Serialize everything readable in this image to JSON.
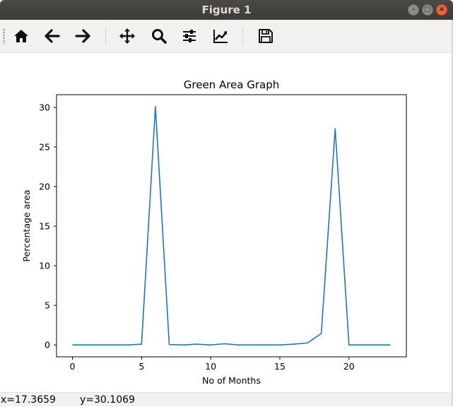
{
  "window": {
    "title": "Figure 1",
    "controls": {
      "minimize": "–",
      "maximize": "□",
      "close": "×"
    }
  },
  "toolbar": {
    "buttons": [
      {
        "name": "home",
        "icon": "home-icon"
      },
      {
        "name": "back",
        "icon": "arrow-left-icon"
      },
      {
        "name": "forward",
        "icon": "arrow-right-icon"
      },
      {
        "name": "pan",
        "icon": "move-icon"
      },
      {
        "name": "zoom",
        "icon": "magnifier-icon"
      },
      {
        "name": "subplots",
        "icon": "sliders-icon"
      },
      {
        "name": "edit-axes",
        "icon": "line-chart-icon"
      },
      {
        "name": "save",
        "icon": "floppy-disk-icon"
      }
    ]
  },
  "statusbar": {
    "x_readout": "x=17.3659",
    "y_readout": "y=30.1069"
  },
  "chart_data": {
    "type": "line",
    "title": "Green Area Graph",
    "xlabel": "No of Months",
    "ylabel": "Percentage area",
    "xlim": [
      -1.15,
      24.15
    ],
    "ylim": [
      -1.5,
      31.6
    ],
    "xticks": [
      0,
      5,
      10,
      15,
      20
    ],
    "xtick_labels": [
      "0",
      "5",
      "10",
      "15",
      "20"
    ],
    "yticks": [
      0,
      5,
      10,
      15,
      20,
      25,
      30
    ],
    "ytick_labels": [
      "0",
      "5",
      "10",
      "15",
      "20",
      "25",
      "30"
    ],
    "grid": false,
    "color": "#1f77b4",
    "series": [
      {
        "name": "green area",
        "x": [
          0,
          1,
          2,
          3,
          4,
          5,
          6,
          7,
          8,
          9,
          10,
          11,
          12,
          13,
          14,
          15,
          16,
          17,
          18,
          19,
          20,
          21,
          22,
          23
        ],
        "values": [
          0.0,
          0.0,
          0.0,
          0.0,
          0.0,
          0.1,
          30.1,
          0.05,
          0.0,
          0.1,
          0.0,
          0.15,
          0.0,
          0.0,
          0.0,
          0.0,
          0.1,
          0.25,
          1.45,
          27.3,
          0.0,
          0.0,
          0.0,
          0.0
        ]
      }
    ]
  }
}
